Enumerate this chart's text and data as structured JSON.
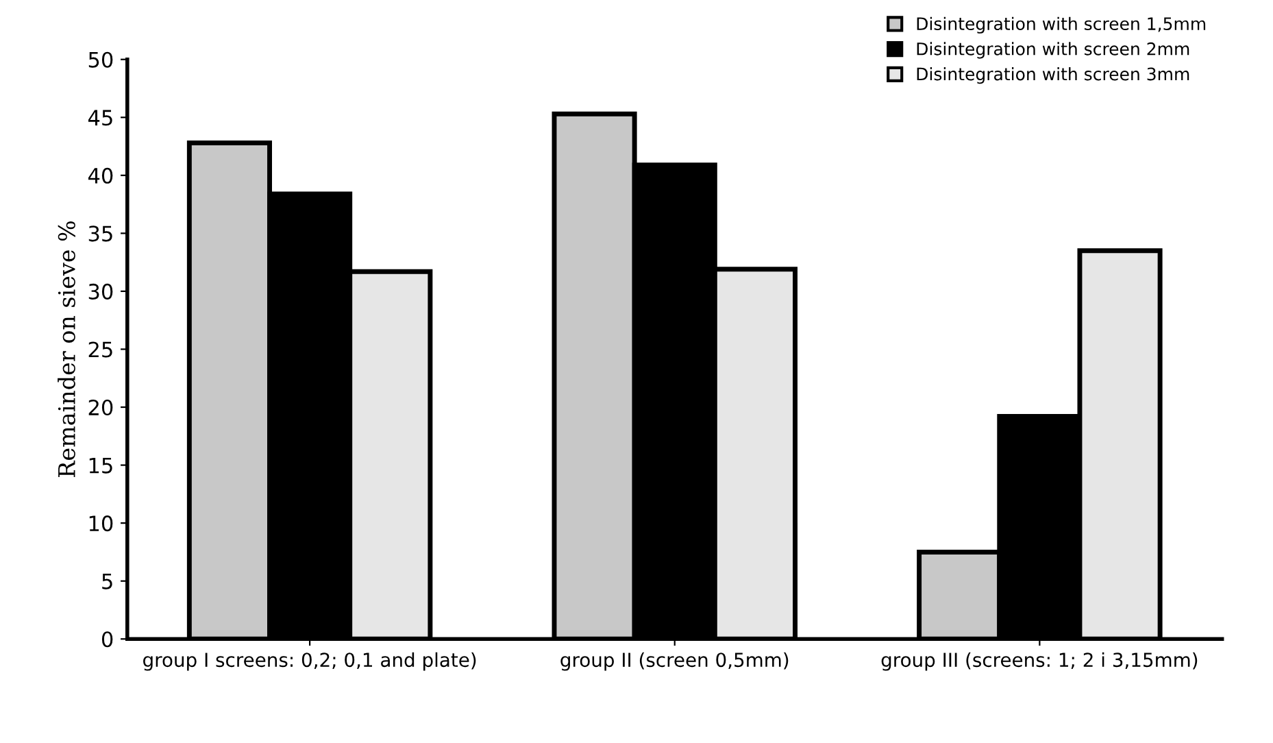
{
  "chart_data": {
    "type": "bar",
    "ylabel": "Remainder on sieve %",
    "categories": [
      "group I screens: 0,2; 0,1 and plate)",
      "group II (screen 0,5mm)",
      "group III (screens: 1; 2 i 3,15mm)"
    ],
    "series": [
      {
        "name": "Disintegration with screen 1,5mm",
        "color": "#c8c8c8",
        "values": [
          42.8,
          45.3,
          7.5
        ]
      },
      {
        "name": "Disintegration with screen 2mm",
        "color": "#000000",
        "values": [
          38.4,
          40.9,
          19.2
        ]
      },
      {
        "name": "Disintegration with screen 3mm",
        "color": "#e6e6e6",
        "values": [
          31.7,
          31.9,
          33.5
        ]
      }
    ],
    "ylim": [
      0,
      50
    ],
    "yticks": [
      0,
      5,
      10,
      15,
      20,
      25,
      30,
      35,
      40,
      45,
      50
    ],
    "legend": "top right",
    "grid": false
  }
}
